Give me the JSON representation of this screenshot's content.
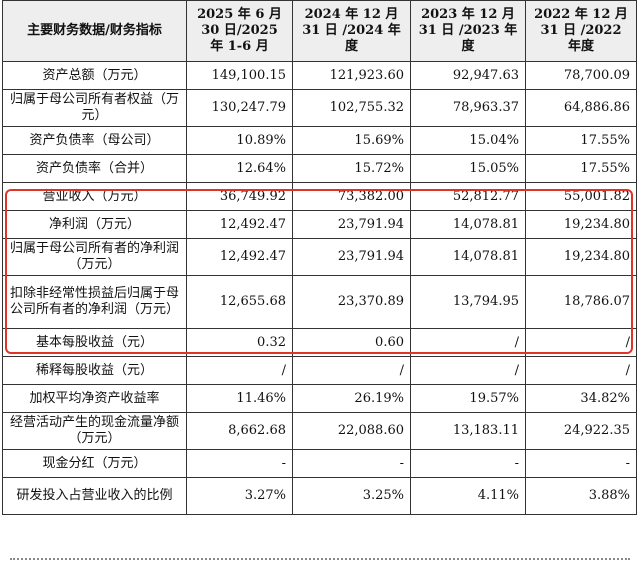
{
  "headers": [
    "主要财务数据/财务指标",
    "2025 年 6 月 30 日/2025 年 1-6 月",
    "2024 年 12 月 31 日 /2024 年度",
    "2023 年 12 月 31 日 /2023 年度",
    "2022 年 12 月 31 日 /2022 年度"
  ],
  "rows": [
    {
      "label": "资产总额（万元）",
      "v": [
        "149,100.15",
        "121,923.60",
        "92,947.63",
        "78,700.09"
      ]
    },
    {
      "label": "归属于母公司所有者权益（万元）",
      "v": [
        "130,247.79",
        "102,755.32",
        "78,963.37",
        "64,886.86"
      ]
    },
    {
      "label": "资产负债率（母公司）",
      "v": [
        "10.89%",
        "15.69%",
        "15.04%",
        "17.55%"
      ]
    },
    {
      "label": "资产负债率（合并）",
      "v": [
        "12.64%",
        "15.72%",
        "15.05%",
        "17.55%"
      ]
    },
    {
      "label": "营业收入（万元）",
      "v": [
        "36,749.92",
        "73,382.00",
        "52,812.77",
        "55,001.82"
      ]
    },
    {
      "label": "净利润（万元）",
      "v": [
        "12,492.47",
        "23,791.94",
        "14,078.81",
        "19,234.80"
      ]
    },
    {
      "label": "归属于母公司所有者的净利润（万元）",
      "v": [
        "12,492.47",
        "23,791.94",
        "14,078.81",
        "19,234.80"
      ]
    },
    {
      "label": "扣除非经常性损益后归属于母公司所有者的净利润（万元）",
      "v": [
        "12,655.68",
        "23,370.89",
        "13,794.95",
        "18,786.07"
      ]
    },
    {
      "label": "基本每股收益（元）",
      "v": [
        "0.32",
        "0.60",
        "/",
        "/"
      ]
    },
    {
      "label": "稀释每股收益（元）",
      "v": [
        "/",
        "/",
        "/",
        "/"
      ]
    },
    {
      "label": "加权平均净资产收益率",
      "v": [
        "11.46%",
        "26.19%",
        "19.57%",
        "34.82%"
      ]
    },
    {
      "label": "经营活动产生的现金流量净额（万元）",
      "v": [
        "8,662.68",
        "22,088.60",
        "13,183.11",
        "24,922.35"
      ]
    },
    {
      "label": "现金分红（万元）",
      "v": [
        "-",
        "-",
        "-",
        "-"
      ]
    },
    {
      "label": "研发投入占营业收入的比例",
      "v": [
        "3.27%",
        "3.25%",
        "4.11%",
        "3.88%"
      ]
    }
  ],
  "highlight_color": "#e2332a"
}
